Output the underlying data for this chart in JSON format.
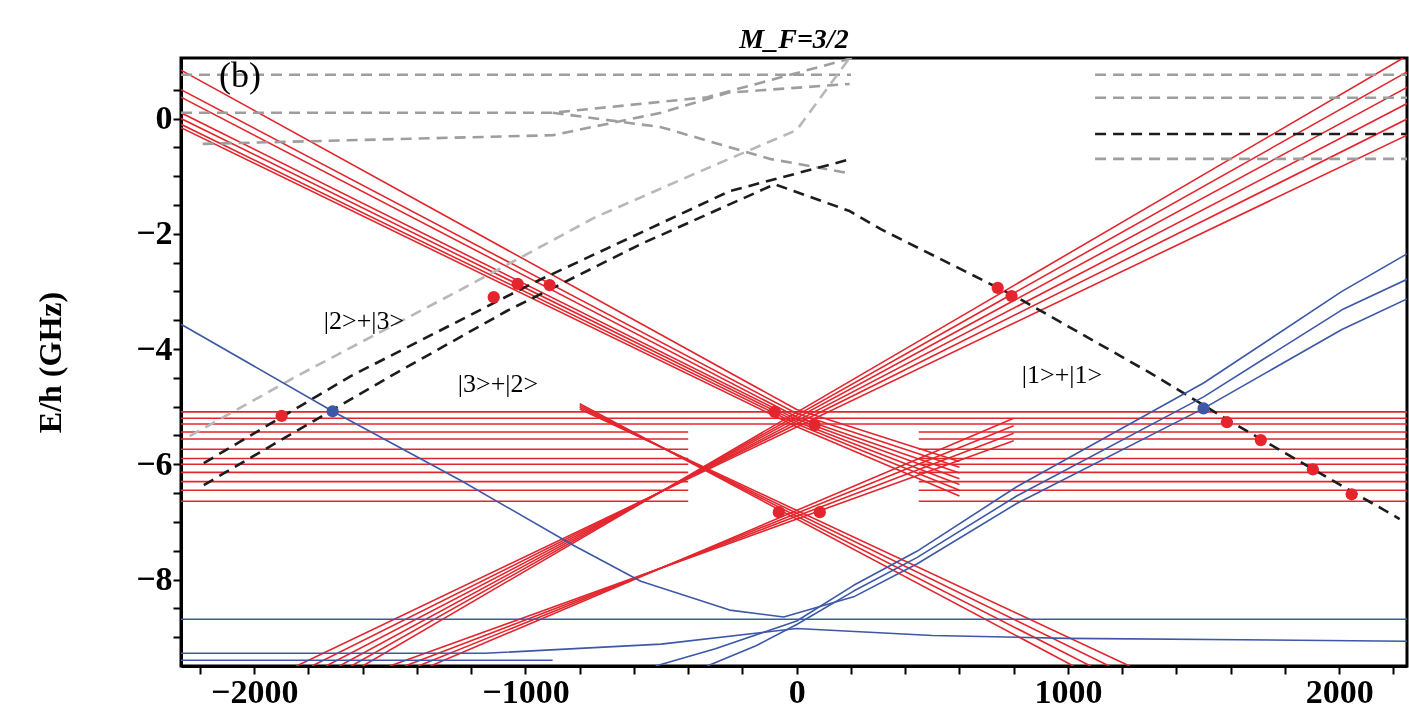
{
  "chart_data": {
    "type": "line",
    "title": "M_F=3/2",
    "ylabel": "E/h (GHz)",
    "annotations": [
      "(b)",
      "|2>+|3>",
      "|3>+|2>",
      "|1>+|1>"
    ],
    "xlim": [
      -2270,
      2250
    ],
    "ylim": [
      -9.5,
      1.05
    ],
    "xticks": [
      -2000,
      -1000,
      0,
      1000,
      2000,
      {
        "value": -2200,
        "label": null
      },
      {
        "value": -1800,
        "label": null
      },
      {
        "value": -1600,
        "label": null
      },
      {
        "value": -1400,
        "label": null
      },
      {
        "value": -1200,
        "label": null
      },
      {
        "value": -800,
        "label": null
      },
      {
        "value": -600,
        "label": null
      },
      {
        "value": -400,
        "label": null
      },
      {
        "value": -200,
        "label": null
      },
      {
        "value": 200,
        "label": null
      },
      {
        "value": 400,
        "label": null
      },
      {
        "value": 600,
        "label": null
      },
      {
        "value": 800,
        "label": null
      },
      {
        "value": 1200,
        "label": null
      },
      {
        "value": 1400,
        "label": null
      },
      {
        "value": 1600,
        "label": null
      },
      {
        "value": 1800,
        "label": null
      },
      {
        "value": 2200,
        "label": null
      }
    ],
    "yticks": [
      0,
      -2,
      -4,
      -6,
      -8,
      {
        "value": 0.5,
        "label": null
      },
      {
        "value": -0.5,
        "label": null
      },
      {
        "value": -1,
        "label": null
      },
      {
        "value": -1.5,
        "label": null
      },
      {
        "value": -2.5,
        "label": null
      },
      {
        "value": -3,
        "label": null
      },
      {
        "value": -3.5,
        "label": null
      },
      {
        "value": -4.5,
        "label": null
      },
      {
        "value": -5,
        "label": null
      },
      {
        "value": -5.5,
        "label": null
      },
      {
        "value": -6.5,
        "label": null
      },
      {
        "value": -7,
        "label": null
      },
      {
        "value": -7.5,
        "label": null
      },
      {
        "value": -8.5,
        "label": null
      },
      {
        "value": -9,
        "label": null
      }
    ],
    "series": [
      {
        "color": "#e3262e",
        "line_style": "solid",
        "x": [
          -2270,
          0,
          600
        ],
        "values": [
          0.84,
          -5.05,
          -5.95
        ]
      },
      {
        "color": "#e3262e",
        "line_style": "solid",
        "x": [
          -2270,
          0,
          600
        ],
        "values": [
          0.5,
          -5.12,
          -6.05
        ]
      },
      {
        "color": "#e3262e",
        "line_style": "solid",
        "x": [
          -2270,
          0,
          600
        ],
        "values": [
          0.37,
          -5.18,
          -6.15
        ]
      },
      {
        "color": "#e3262e",
        "line_style": "solid",
        "x": [
          -2270,
          0,
          600
        ],
        "values": [
          0.1,
          -5.22,
          -6.25
        ]
      },
      {
        "color": "#e3262e",
        "line_style": "solid",
        "x": [
          -2270,
          0,
          600
        ],
        "values": [
          0.0,
          -5.26,
          -6.35
        ]
      },
      {
        "color": "#e3262e",
        "line_style": "solid",
        "x": [
          -2270,
          0,
          600
        ],
        "values": [
          -0.1,
          -5.3,
          -6.45
        ]
      },
      {
        "color": "#e3262e",
        "line_style": "solid",
        "x": [
          -2270,
          0,
          600
        ],
        "values": [
          -0.16,
          -5.35,
          -6.55
        ]
      },
      {
        "color": "#e3262e",
        "line_style": "solid",
        "x": [
          -1600,
          2236
        ],
        "values": [
          -9.5,
          1.05
        ]
      },
      {
        "color": "#e3262e",
        "line_style": "solid",
        "x": [
          -1642,
          2250
        ],
        "values": [
          -9.5,
          0.81
        ]
      },
      {
        "color": "#e3262e",
        "line_style": "solid",
        "x": [
          -1686,
          2250
        ],
        "values": [
          -9.5,
          0.54
        ]
      },
      {
        "color": "#e3262e",
        "line_style": "solid",
        "x": [
          -1735,
          2250
        ],
        "values": [
          -9.5,
          0.26
        ]
      },
      {
        "color": "#e3262e",
        "line_style": "solid",
        "x": [
          -1787,
          2250
        ],
        "values": [
          -9.5,
          -0.01
        ]
      },
      {
        "color": "#e3262e",
        "line_style": "solid",
        "x": [
          -1844,
          2250
        ],
        "values": [
          -9.5,
          -0.29
        ]
      },
      {
        "color": "#e3262e",
        "line_style": "solid",
        "x": [
          -1350,
          800
        ],
        "values": [
          -9.5,
          -5.2
        ]
      },
      {
        "color": "#e3262e",
        "line_style": "solid",
        "x": [
          -1395,
          800
        ],
        "values": [
          -9.5,
          -5.33
        ]
      },
      {
        "color": "#e3262e",
        "line_style": "solid",
        "x": [
          -1444,
          800
        ],
        "values": [
          -9.5,
          -5.46
        ]
      },
      {
        "color": "#e3262e",
        "line_style": "solid",
        "x": [
          -1500,
          800
        ],
        "values": [
          -9.5,
          -5.59
        ]
      },
      {
        "color": "#e3262e",
        "line_style": "solid",
        "x": [
          -800,
          1227
        ],
        "values": [
          -5.04,
          -9.5
        ]
      },
      {
        "color": "#e3262e",
        "line_style": "solid",
        "x": [
          -800,
          1152
        ],
        "values": [
          -5.01,
          -9.5
        ]
      },
      {
        "color": "#e3262e",
        "line_style": "solid",
        "x": [
          -800,
          1083
        ],
        "values": [
          -4.98,
          -9.5
        ]
      },
      {
        "color": "#e3262e",
        "line_style": "solid",
        "x": [
          -800,
          1020
        ],
        "values": [
          -4.95,
          -9.5
        ]
      },
      {
        "color": "#e3262e",
        "line_style": "solid",
        "x": [
          -2270,
          2250
        ],
        "values": [
          -5.09,
          -5.09
        ]
      },
      {
        "color": "#e3262e",
        "line_style": "solid",
        "x": [
          -2270,
          2250
        ],
        "values": [
          -5.2,
          -5.2
        ]
      },
      {
        "color": "#e3262e",
        "line_style": "solid",
        "x": [
          -2270,
          2250
        ],
        "values": [
          -5.3,
          -5.3
        ]
      },
      {
        "color": "#e3262e",
        "line_style": "solid",
        "x": [
          -2270,
          -400,
          0,
          450,
          2250
        ],
        "values": [
          -5.44,
          -5.44,
          null,
          -5.44,
          -5.44
        ]
      },
      {
        "color": "#e3262e",
        "line_style": "solid",
        "x": [
          -2270,
          -400,
          0,
          450,
          2250
        ],
        "values": [
          -5.56,
          -5.56,
          null,
          -5.56,
          -5.56
        ]
      },
      {
        "color": "#e3262e",
        "line_style": "solid",
        "x": [
          -2270,
          -400,
          0,
          450,
          2250
        ],
        "values": [
          -5.74,
          -5.74,
          null,
          -5.74,
          -5.74
        ]
      },
      {
        "color": "#e3262e",
        "line_style": "solid",
        "x": [
          -2270,
          -400,
          0,
          450,
          2250
        ],
        "values": [
          -5.9,
          -5.9,
          null,
          -5.9,
          -5.9
        ]
      },
      {
        "color": "#e3262e",
        "line_style": "solid",
        "x": [
          -2270,
          -400,
          0,
          450,
          2250
        ],
        "values": [
          -6.0,
          -6.0,
          null,
          -6.0,
          -6.0
        ]
      },
      {
        "color": "#e3262e",
        "line_style": "solid",
        "x": [
          -2270,
          -400,
          0,
          450,
          2250
        ],
        "values": [
          -6.14,
          -6.14,
          null,
          -6.14,
          -6.14
        ]
      },
      {
        "color": "#e3262e",
        "line_style": "solid",
        "x": [
          -2270,
          -400,
          0,
          450,
          2250
        ],
        "values": [
          -6.3,
          -6.3,
          null,
          -6.3,
          -6.3
        ]
      },
      {
        "color": "#e3262e",
        "line_style": "solid",
        "x": [
          -2270,
          -400,
          0,
          450,
          2250
        ],
        "values": [
          -6.45,
          -6.45,
          null,
          -6.45,
          -6.45
        ]
      },
      {
        "color": "#e3262e",
        "line_style": "solid",
        "x": [
          -2270,
          -400,
          0,
          450,
          2250
        ],
        "values": [
          -6.64,
          -6.64,
          null,
          -6.64,
          -6.64
        ]
      },
      {
        "color": "#9e9e9e",
        "line_style": "dashed",
        "x": [
          -2270,
          200,
          650,
          1100,
          2250
        ],
        "values": [
          0.76,
          0.76,
          null,
          0.76,
          0.76
        ]
      },
      {
        "color": "#9e9e9e",
        "line_style": "dashed",
        "x": [
          -2270,
          -900,
          -330,
          205
        ],
        "values": [
          0.1,
          0.1,
          0.37,
          1.05
        ]
      },
      {
        "color": "#9e9e9e",
        "line_style": "dashed",
        "x": [
          -2190,
          -900,
          -500,
          -250,
          195,
          650,
          1100,
          2250
        ],
        "values": [
          -0.44,
          -0.29,
          0.1,
          0.45,
          0.6,
          null,
          0.36,
          0.36
        ]
      },
      {
        "color": "#9e9e9e",
        "line_style": "dashed",
        "x": [
          -900,
          -500,
          -100,
          195,
          650,
          1100,
          2250
        ],
        "values": [
          0.1,
          -0.15,
          -0.7,
          -0.95,
          null,
          -0.7,
          -0.7
        ]
      },
      {
        "color": "#b8b8b8",
        "line_style": "dashed",
        "x": [
          -2238,
          -1843,
          -1235,
          -741,
          -328,
          0,
          195
        ],
        "values": [
          -5.51,
          -4.47,
          -2.96,
          -1.71,
          -0.86,
          -0.2,
          1.05
        ]
      },
      {
        "color": "#1c1c1c",
        "line_style": "dashed",
        "x": [
          -2186,
          -1497,
          -1069,
          -575,
          -81,
          192,
          310,
          811,
          1309,
          1586,
          2046,
          2223
        ],
        "values": [
          -6.36,
          -4.47,
          -3.34,
          -2.18,
          -1.14,
          -1.6,
          -1.92,
          -3.1,
          -4.43,
          -5.22,
          -6.47,
          -6.95
        ]
      },
      {
        "color": "#1c1c1c",
        "line_style": "dashed",
        "x": [
          -2186,
          -1644,
          -970,
          -247,
          195,
          650,
          1100,
          2250
        ],
        "values": [
          -5.98,
          -4.47,
          -2.85,
          -1.26,
          -0.71,
          null,
          -0.27,
          -0.27
        ]
      },
      {
        "color": "#3c58a6",
        "line_style": "solid",
        "x": [
          -2270,
          -1711,
          -1235,
          -822,
          -575,
          -247,
          -48,
          210,
          443,
          811,
          1500,
          2010,
          2250
        ],
        "values": [
          -3.57,
          -5.08,
          -6.29,
          -7.41,
          -8.03,
          -8.53,
          -8.65,
          -8.3,
          -7.73,
          -6.68,
          -5.03,
          -3.66,
          -3.13
        ]
      },
      {
        "color": "#3c58a6",
        "line_style": "solid",
        "x": [
          -330,
          -150,
          0,
          210,
          443,
          811,
          1500,
          2010,
          2250
        ],
        "values": [
          -9.5,
          -9.15,
          -8.78,
          -8.2,
          -7.62,
          -6.55,
          -4.83,
          -3.32,
          -2.79
        ]
      },
      {
        "color": "#3c58a6",
        "line_style": "solid",
        "x": [
          -520,
          -300,
          0,
          210,
          443,
          811,
          1500,
          2010,
          2250
        ],
        "values": [
          -9.5,
          -9.2,
          -8.72,
          -8.1,
          -7.51,
          -6.39,
          -4.59,
          -3.0,
          -2.35
        ]
      },
      {
        "color": "#3c58a6",
        "line_style": "solid",
        "x": [
          -2270,
          2250
        ],
        "values": [
          -8.69,
          -8.69
        ]
      },
      {
        "color": "#3c58a6",
        "line_style": "solid",
        "x": [
          -2270,
          -1150,
          -500,
          0,
          500,
          1000,
          2250
        ],
        "values": [
          -9.28,
          -9.28,
          -9.12,
          -8.85,
          -8.97,
          -9.02,
          -9.07
        ]
      },
      {
        "color": "#3c58a6",
        "line_style": "solid",
        "x": [
          -2270,
          -900
        ],
        "values": [
          -9.4,
          -9.4
        ]
      },
      {
        "type": "scatter",
        "color": "#3c58a6",
        "marker": "circle",
        "x": [
          -1711,
          1500
        ],
        "values": [
          -5.08,
          -5.03
        ]
      },
      {
        "type": "scatter",
        "color": "#e3262e",
        "marker": "circle",
        "x": [
          -1899,
          -1117,
          -1029,
          -911,
          -81,
          66,
          -66,
          85,
          741,
          792,
          1586,
          1711,
          1903,
          2046
        ],
        "values": [
          -5.16,
          -3.1,
          -2.87,
          -2.89,
          -5.09,
          -5.32,
          -6.83,
          -6.83,
          -2.94,
          -3.08,
          -5.27,
          -5.58,
          -6.09,
          -6.52
        ]
      }
    ]
  }
}
